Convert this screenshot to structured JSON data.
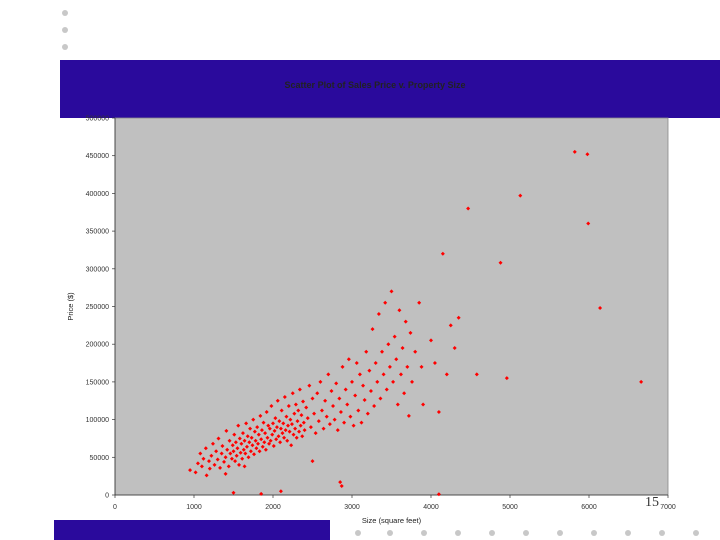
{
  "slide": {
    "page_number": "15",
    "band_color": "#2a0a9c"
  },
  "chart_data": {
    "type": "scatter",
    "title": "Scatter Plot of Sales Price v. Property Size",
    "xlabel": "Size (square feet)",
    "ylabel": "Price ($)",
    "xlim": [
      0,
      7000
    ],
    "ylim": [
      0,
      500000
    ],
    "x_ticks": [
      0,
      1000,
      2000,
      3000,
      4000,
      5000,
      6000,
      7000
    ],
    "y_ticks": [
      0,
      50000,
      100000,
      150000,
      200000,
      250000,
      300000,
      350000,
      400000,
      450000,
      500000
    ],
    "grid": false,
    "plot_background": "#c0c0c0",
    "marker_color": "#ff0000",
    "points": [
      [
        950,
        33000
      ],
      [
        1020,
        30000
      ],
      [
        1050,
        42000
      ],
      [
        1080,
        55000
      ],
      [
        1100,
        38000
      ],
      [
        1120,
        48000
      ],
      [
        1150,
        62000
      ],
      [
        1160,
        26000
      ],
      [
        1190,
        45000
      ],
      [
        1200,
        35000
      ],
      [
        1220,
        52000
      ],
      [
        1240,
        68000
      ],
      [
        1260,
        40000
      ],
      [
        1280,
        58000
      ],
      [
        1300,
        47000
      ],
      [
        1310,
        75000
      ],
      [
        1330,
        36000
      ],
      [
        1350,
        55000
      ],
      [
        1360,
        65000
      ],
      [
        1380,
        44000
      ],
      [
        1400,
        50000
      ],
      [
        1410,
        85000
      ],
      [
        1420,
        60000
      ],
      [
        1440,
        38000
      ],
      [
        1450,
        72000
      ],
      [
        1460,
        55000
      ],
      [
        1480,
        48000
      ],
      [
        1490,
        66000
      ],
      [
        1500,
        58000
      ],
      [
        1510,
        80000
      ],
      [
        1520,
        45000
      ],
      [
        1530,
        70000
      ],
      [
        1540,
        52000
      ],
      [
        1550,
        62000
      ],
      [
        1560,
        92000
      ],
      [
        1570,
        40000
      ],
      [
        1580,
        75000
      ],
      [
        1590,
        56000
      ],
      [
        1600,
        68000
      ],
      [
        1610,
        48000
      ],
      [
        1620,
        82000
      ],
      [
        1630,
        60000
      ],
      [
        1640,
        72000
      ],
      [
        1650,
        55000
      ],
      [
        1660,
        95000
      ],
      [
        1670,
        64000
      ],
      [
        1680,
        78000
      ],
      [
        1690,
        50000
      ],
      [
        1700,
        70000
      ],
      [
        1710,
        88000
      ],
      [
        1720,
        58000
      ],
      [
        1730,
        76000
      ],
      [
        1740,
        66000
      ],
      [
        1750,
        100000
      ],
      [
        1760,
        54000
      ],
      [
        1770,
        84000
      ],
      [
        1780,
        72000
      ],
      [
        1790,
        62000
      ],
      [
        1800,
        90000
      ],
      [
        1810,
        68000
      ],
      [
        1820,
        80000
      ],
      [
        1830,
        58000
      ],
      [
        1840,
        105000
      ],
      [
        1850,
        74000
      ],
      [
        1860,
        86000
      ],
      [
        1870,
        64000
      ],
      [
        1880,
        96000
      ],
      [
        1890,
        70000
      ],
      [
        1900,
        82000
      ],
      [
        1910,
        60000
      ],
      [
        1920,
        110000
      ],
      [
        1930,
        76000
      ],
      [
        1940,
        92000
      ],
      [
        1950,
        68000
      ],
      [
        1960,
        88000
      ],
      [
        1970,
        72000
      ],
      [
        1980,
        118000
      ],
      [
        1990,
        80000
      ],
      [
        2000,
        95000
      ],
      [
        2010,
        65000
      ],
      [
        2020,
        85000
      ],
      [
        2030,
        102000
      ],
      [
        2040,
        74000
      ],
      [
        2050,
        90000
      ],
      [
        2060,
        125000
      ],
      [
        2070,
        78000
      ],
      [
        2080,
        98000
      ],
      [
        2090,
        70000
      ],
      [
        2100,
        88000
      ],
      [
        2110,
        112000
      ],
      [
        2120,
        82000
      ],
      [
        2130,
        95000
      ],
      [
        2140,
        76000
      ],
      [
        2150,
        130000
      ],
      [
        2160,
        86000
      ],
      [
        2170,
        104000
      ],
      [
        2180,
        72000
      ],
      [
        2190,
        92000
      ],
      [
        2200,
        118000
      ],
      [
        2210,
        84000
      ],
      [
        2220,
        100000
      ],
      [
        2230,
        66000
      ],
      [
        2240,
        94000
      ],
      [
        2250,
        135000
      ],
      [
        2260,
        80000
      ],
      [
        2270,
        108000
      ],
      [
        2280,
        88000
      ],
      [
        2290,
        120000
      ],
      [
        2300,
        76000
      ],
      [
        2310,
        98000
      ],
      [
        2320,
        112000
      ],
      [
        2330,
        84000
      ],
      [
        2340,
        140000
      ],
      [
        2350,
        92000
      ],
      [
        2360,
        106000
      ],
      [
        2370,
        78000
      ],
      [
        2380,
        124000
      ],
      [
        2390,
        96000
      ],
      [
        2400,
        86000
      ],
      [
        2420,
        116000
      ],
      [
        2440,
        102000
      ],
      [
        2460,
        145000
      ],
      [
        2480,
        90000
      ],
      [
        2500,
        128000
      ],
      [
        2520,
        108000
      ],
      [
        2540,
        82000
      ],
      [
        2560,
        135000
      ],
      [
        2580,
        98000
      ],
      [
        2600,
        150000
      ],
      [
        2620,
        112000
      ],
      [
        2640,
        88000
      ],
      [
        2660,
        125000
      ],
      [
        2680,
        104000
      ],
      [
        2700,
        160000
      ],
      [
        2720,
        94000
      ],
      [
        2740,
        138000
      ],
      [
        2760,
        118000
      ],
      [
        2780,
        100000
      ],
      [
        2800,
        148000
      ],
      [
        2820,
        86000
      ],
      [
        2840,
        128000
      ],
      [
        2860,
        110000
      ],
      [
        2880,
        170000
      ],
      [
        2900,
        96000
      ],
      [
        2920,
        140000
      ],
      [
        2940,
        120000
      ],
      [
        2960,
        180000
      ],
      [
        2980,
        104000
      ],
      [
        3000,
        150000
      ],
      [
        3020,
        92000
      ],
      [
        3040,
        132000
      ],
      [
        3060,
        175000
      ],
      [
        3080,
        112000
      ],
      [
        3100,
        160000
      ],
      [
        3120,
        96000
      ],
      [
        3140,
        145000
      ],
      [
        3160,
        126000
      ],
      [
        3180,
        190000
      ],
      [
        3200,
        108000
      ],
      [
        3220,
        165000
      ],
      [
        3240,
        138000
      ],
      [
        3260,
        220000
      ],
      [
        3280,
        118000
      ],
      [
        3300,
        175000
      ],
      [
        3320,
        150000
      ],
      [
        3340,
        240000
      ],
      [
        3360,
        128000
      ],
      [
        3380,
        190000
      ],
      [
        3400,
        160000
      ],
      [
        3420,
        255000
      ],
      [
        3440,
        140000
      ],
      [
        3460,
        200000
      ],
      [
        3480,
        170000
      ],
      [
        3500,
        270000
      ],
      [
        3520,
        150000
      ],
      [
        3540,
        210000
      ],
      [
        3560,
        180000
      ],
      [
        3580,
        120000
      ],
      [
        3600,
        245000
      ],
      [
        3620,
        160000
      ],
      [
        3640,
        195000
      ],
      [
        3660,
        135000
      ],
      [
        3680,
        230000
      ],
      [
        3700,
        170000
      ],
      [
        3720,
        105000
      ],
      [
        3740,
        215000
      ],
      [
        3760,
        150000
      ],
      [
        3800,
        190000
      ],
      [
        3850,
        255000
      ],
      [
        3880,
        170000
      ],
      [
        3900,
        120000
      ],
      [
        4000,
        205000
      ],
      [
        4050,
        175000
      ],
      [
        4100,
        110000
      ],
      [
        4150,
        320000
      ],
      [
        4200,
        160000
      ],
      [
        4250,
        225000
      ],
      [
        4300,
        195000
      ],
      [
        4350,
        235000
      ],
      [
        4470,
        380000
      ],
      [
        4580,
        160000
      ],
      [
        4880,
        308000
      ],
      [
        4960,
        155000
      ],
      [
        5130,
        397000
      ],
      [
        5820,
        455000
      ],
      [
        5980,
        452000
      ],
      [
        5990,
        360000
      ],
      [
        6140,
        248000
      ],
      [
        6660,
        150000
      ],
      [
        1500,
        3000
      ],
      [
        1850,
        1500
      ],
      [
        2100,
        5000
      ],
      [
        2850,
        17000
      ],
      [
        2870,
        12000
      ],
      [
        4100,
        1000
      ],
      [
        1400,
        28000
      ],
      [
        1640,
        38000
      ],
      [
        2500,
        45000
      ]
    ]
  }
}
